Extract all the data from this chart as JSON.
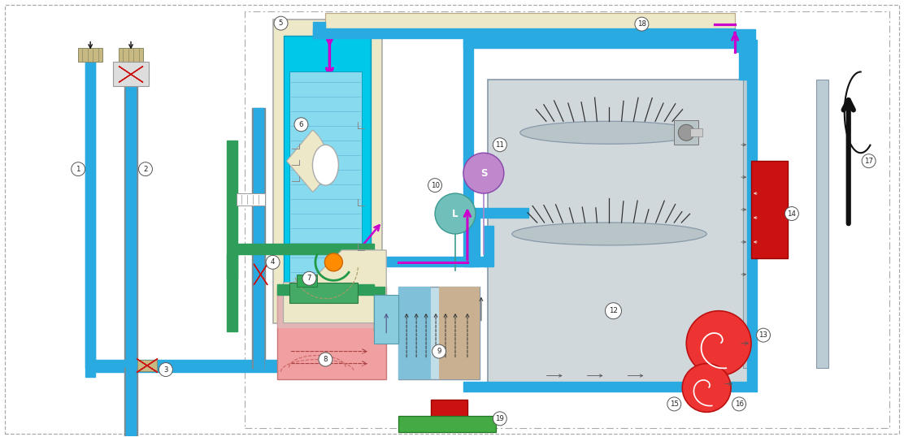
{
  "bg_color": "#ffffff",
  "fig_width": 11.12,
  "fig_height": 5.38,
  "dpi": 100,
  "blue": "#29ABE2",
  "cyan_light": "#00D4F0",
  "cyan_mid": "#5DCFEA",
  "teal": "#00BCD4",
  "green_pipe": "#2E9E5A",
  "green_fill": "#4CAF7A",
  "pink_fill": "#F4A0A0",
  "beige": "#EDE8C8",
  "tan": "#C8B882",
  "gray_fill": "#C0C8CC",
  "gray_mid": "#9BAAB2",
  "gray_dark": "#7A8A92",
  "red": "#CC1111",
  "magenta": "#CC00CC",
  "orange": "#FF8C00",
  "white": "#FFFFFF",
  "black": "#111111",
  "border_gray": "#888888"
}
